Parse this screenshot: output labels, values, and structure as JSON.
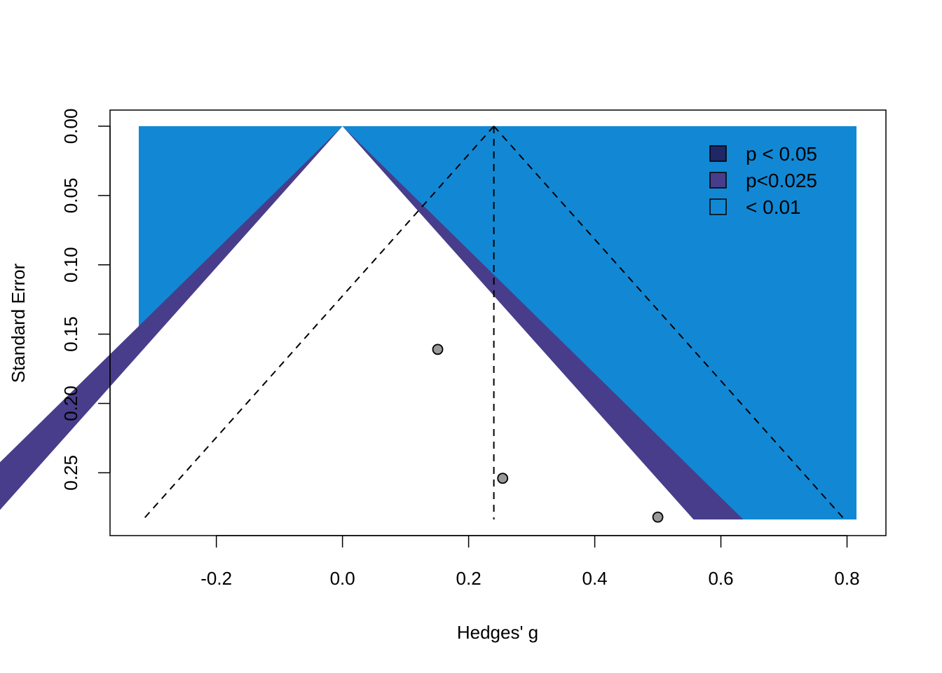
{
  "chart_data": {
    "type": "scatter",
    "subtype": "contour-enhanced funnel plot",
    "xlabel": "Hedges' g",
    "ylabel": "Standard Error",
    "xlim": [
      -0.323,
      0.815
    ],
    "ylim": [
      0.2837,
      0.0
    ],
    "y_reversed": true,
    "x_ticks": [
      -0.2,
      0.0,
      0.2,
      0.4,
      0.6,
      0.8
    ],
    "x_tick_labels": [
      "-0.2",
      "0.0",
      "0.2",
      "0.4",
      "0.6",
      "0.8"
    ],
    "y_ticks": [
      0.0,
      0.05,
      0.1,
      0.15,
      0.2,
      0.25
    ],
    "y_tick_labels": [
      "0.00",
      "0.05",
      "0.10",
      "0.15",
      "0.20",
      "0.25"
    ],
    "points": [
      {
        "x": 0.151,
        "y": 0.161
      },
      {
        "x": 0.254,
        "y": 0.254
      },
      {
        "x": 0.5,
        "y": 0.282
      }
    ],
    "reference_center": 0.0,
    "pooled_estimate": 0.24,
    "contours": [
      {
        "label": "p < 0.05",
        "z": 1.96,
        "color": "#1F2766"
      },
      {
        "label": "p<0.025",
        "z": 2.24,
        "color": "#483D8B"
      },
      {
        "label": "< 0.01",
        "z": 2.576,
        "color": "#1288D4"
      }
    ],
    "legend": {
      "position": "top-right",
      "items": [
        {
          "label": "p < 0.05",
          "color": "#1F2766"
        },
        {
          "label": "p<0.025",
          "color": "#483D8B"
        },
        {
          "label": "< 0.01",
          "color": "#1288D4"
        }
      ]
    },
    "point_color": "#999999",
    "grid": false
  }
}
